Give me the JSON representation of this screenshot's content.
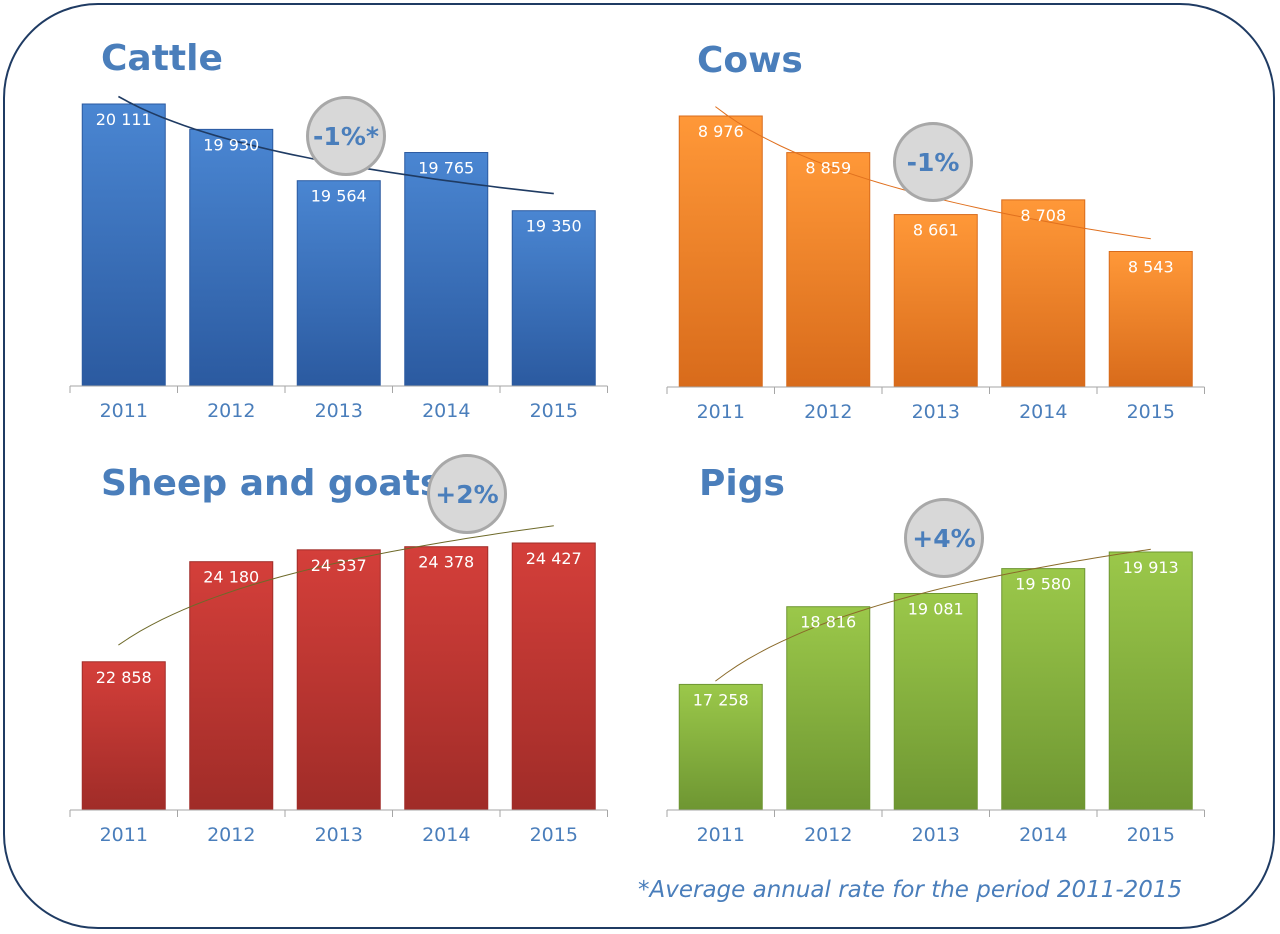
{
  "footnote": "*Average annual rate for the period 2011-2015",
  "chart_data": [
    {
      "type": "bar",
      "title": "Cattle",
      "badge": "-1%*",
      "categories": [
        "2011",
        "2012",
        "2013",
        "2014",
        "2015"
      ],
      "values": [
        20111,
        19930,
        19564,
        19765,
        19350
      ],
      "labels": [
        "20 111",
        "19 930",
        "19 564",
        "19 765",
        "19 350"
      ],
      "ylim": [
        18100,
        20111
      ],
      "trendline": true,
      "colors": {
        "bar_top": "#4a86d2",
        "bar_bottom": "#2b5aa0",
        "trend": "#1f3b63"
      }
    },
    {
      "type": "bar",
      "title": "Cows",
      "badge": "-1%",
      "categories": [
        "2011",
        "2012",
        "2013",
        "2014",
        "2015"
      ],
      "values": [
        8976,
        8859,
        8661,
        8708,
        8543
      ],
      "labels": [
        "8 976",
        "8 859",
        "8 661",
        "8 708",
        "8 543"
      ],
      "ylim": [
        8110,
        8976
      ],
      "trendline": true,
      "colors": {
        "bar_top": "#ff9838",
        "bar_bottom": "#d86b1b",
        "trend": "#e0701e"
      }
    },
    {
      "type": "bar",
      "title": "Sheep and goats",
      "badge": "+2%",
      "categories": [
        "2011",
        "2012",
        "2013",
        "2014",
        "2015"
      ],
      "values": [
        22858,
        24180,
        24337,
        24378,
        24427
      ],
      "labels": [
        "22 858",
        "24 180",
        "24 337",
        "24 378",
        "24 427"
      ],
      "ylim": [
        20900,
        24427
      ],
      "trendline": true,
      "colors": {
        "bar_top": "#d43f3a",
        "bar_bottom": "#a02c28",
        "trend": "#6e6a2a"
      }
    },
    {
      "type": "bar",
      "title": "Pigs",
      "badge": "+4%",
      "categories": [
        "2011",
        "2012",
        "2013",
        "2014",
        "2015"
      ],
      "values": [
        17258,
        18816,
        19081,
        19580,
        19913
      ],
      "labels": [
        "17 258",
        "18 816",
        "19 081",
        "19 580",
        "19 913"
      ],
      "ylim": [
        14740,
        19913
      ],
      "trendline": true,
      "colors": {
        "bar_top": "#9bc84a",
        "bar_bottom": "#6e9632",
        "trend": "#8a6a2a"
      }
    }
  ]
}
